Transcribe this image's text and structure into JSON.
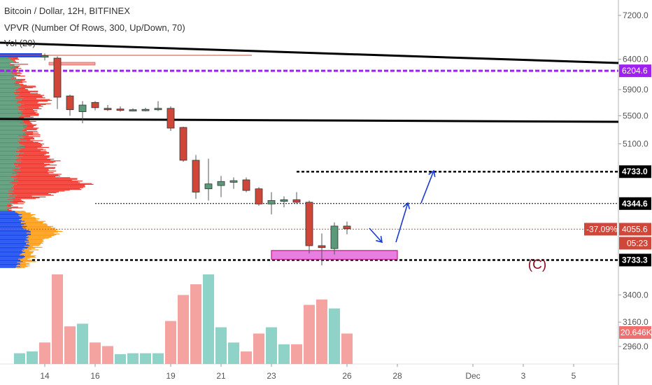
{
  "header": {
    "title": "Bitcoin / Dollar, 12H, BITFINEX",
    "indicator": "VPVR (Number Of Rows, 300, Up/Down, 70)",
    "volume": "Vol (20)"
  },
  "colors": {
    "up": "#5b9a78",
    "down": "#d0473a",
    "vol_up": "#8fd3c8",
    "vol_down": "#f4a3a0",
    "vpvr_up_top": "#5b9a78",
    "vpvr_down_top": "#f03c32",
    "vpvr_up_bottom": "#1f4ef0",
    "vpvr_down_bottom": "#ff9f1a",
    "purple": "#a020f0",
    "arrow": "#1a3ad4",
    "box_fill": "#e77fe0",
    "box_stroke": "#c01a8a",
    "c_label": "#8b0a1a"
  },
  "chart_data": {
    "type": "candlestick",
    "title": "Bitcoin / Dollar, 12H, BITFINEX",
    "y_axis": {
      "ticks": [
        "7200.0",
        "6400.0",
        "5900.0",
        "5500.0",
        "5100.0",
        "3400.0",
        "3160.0",
        "2960.0"
      ],
      "scale": "log",
      "ylim": [
        2850,
        7700
      ]
    },
    "x_axis": {
      "ticks": [
        "14",
        "16",
        "19",
        "21",
        "23",
        "26",
        "28",
        "Dec",
        "3",
        "5"
      ]
    },
    "candles": [
      {
        "t": "14",
        "o": 6440,
        "h": 6500,
        "l": 6380,
        "c": 6460
      },
      {
        "t": "14.5",
        "o": 6420,
        "h": 6450,
        "l": 5600,
        "c": 5780
      },
      {
        "t": "15",
        "o": 5800,
        "h": 5820,
        "l": 5500,
        "c": 5590
      },
      {
        "t": "15.5",
        "o": 5560,
        "h": 5720,
        "l": 5390,
        "c": 5660
      },
      {
        "t": "16",
        "o": 5700,
        "h": 5720,
        "l": 5580,
        "c": 5620
      },
      {
        "t": "16.5",
        "o": 5610,
        "h": 5660,
        "l": 5570,
        "c": 5600
      },
      {
        "t": "17",
        "o": 5600,
        "h": 5640,
        "l": 5560,
        "c": 5580
      },
      {
        "t": "17.5",
        "o": 5585,
        "h": 5610,
        "l": 5565,
        "c": 5590
      },
      {
        "t": "18",
        "o": 5590,
        "h": 5620,
        "l": 5565,
        "c": 5595
      },
      {
        "t": "18.5",
        "o": 5590,
        "h": 5720,
        "l": 5570,
        "c": 5610
      },
      {
        "t": "19",
        "o": 5610,
        "h": 5640,
        "l": 5280,
        "c": 5320
      },
      {
        "t": "19.5",
        "o": 5330,
        "h": 5340,
        "l": 4860,
        "c": 4880
      },
      {
        "t": "20",
        "o": 4880,
        "h": 4950,
        "l": 4400,
        "c": 4480
      },
      {
        "t": "20.5",
        "o": 4520,
        "h": 4900,
        "l": 4380,
        "c": 4580
      },
      {
        "t": "21",
        "o": 4560,
        "h": 4680,
        "l": 4420,
        "c": 4610
      },
      {
        "t": "21.5",
        "o": 4600,
        "h": 4660,
        "l": 4520,
        "c": 4620
      },
      {
        "t": "22",
        "o": 4630,
        "h": 4660,
        "l": 4480,
        "c": 4500
      },
      {
        "t": "22.5",
        "o": 4520,
        "h": 4540,
        "l": 4320,
        "c": 4340
      },
      {
        "t": "23",
        "o": 4340,
        "h": 4480,
        "l": 4220,
        "c": 4380
      },
      {
        "t": "23.5",
        "o": 4370,
        "h": 4430,
        "l": 4300,
        "c": 4390
      },
      {
        "t": "24",
        "o": 4390,
        "h": 4480,
        "l": 4340,
        "c": 4360
      },
      {
        "t": "24.5",
        "o": 4360,
        "h": 4380,
        "l": 3800,
        "c": 3880
      },
      {
        "t": "25",
        "o": 3880,
        "h": 4010,
        "l": 3680,
        "c": 3860
      },
      {
        "t": "25.5",
        "o": 3850,
        "h": 4130,
        "l": 3790,
        "c": 4090
      },
      {
        "t": "26",
        "o": 4090,
        "h": 4140,
        "l": 4000,
        "c": 4060
      }
    ],
    "volume": [
      {
        "t": "13",
        "up": true,
        "v": 0.12
      },
      {
        "t": "13.5",
        "up": true,
        "v": 0.14
      },
      {
        "t": "14",
        "up": false,
        "v": 0.24
      },
      {
        "t": "14.5",
        "up": false,
        "v": 1.0
      },
      {
        "t": "15",
        "up": false,
        "v": 0.42
      },
      {
        "t": "15.5",
        "up": true,
        "v": 0.45
      },
      {
        "t": "16",
        "up": false,
        "v": 0.24
      },
      {
        "t": "16.5",
        "up": false,
        "v": 0.2
      },
      {
        "t": "17",
        "up": true,
        "v": 0.11
      },
      {
        "t": "17.5",
        "up": true,
        "v": 0.12
      },
      {
        "t": "18",
        "up": true,
        "v": 0.12
      },
      {
        "t": "18.5",
        "up": true,
        "v": 0.12
      },
      {
        "t": "19",
        "up": false,
        "v": 0.48
      },
      {
        "t": "19.5",
        "up": false,
        "v": 0.77
      },
      {
        "t": "20",
        "up": false,
        "v": 0.89
      },
      {
        "t": "20.5",
        "up": true,
        "v": 1.0
      },
      {
        "t": "21",
        "up": true,
        "v": 0.41
      },
      {
        "t": "21.5",
        "up": true,
        "v": 0.24
      },
      {
        "t": "22",
        "up": false,
        "v": 0.14
      },
      {
        "t": "22.5",
        "up": false,
        "v": 0.34
      },
      {
        "t": "23",
        "up": true,
        "v": 0.41
      },
      {
        "t": "23.5",
        "up": true,
        "v": 0.22
      },
      {
        "t": "24",
        "up": false,
        "v": 0.22
      },
      {
        "t": "24.5",
        "up": false,
        "v": 0.66
      },
      {
        "t": "25",
        "up": false,
        "v": 0.72
      },
      {
        "t": "25.5",
        "up": true,
        "v": 0.62
      },
      {
        "t": "26",
        "up": false,
        "v": 0.34
      }
    ],
    "levels": [
      {
        "price": 6204.6,
        "label": "6204.6",
        "color": "#a020f0",
        "style": "dashed-thick"
      },
      {
        "price": 4733.0,
        "label": "4733.0",
        "color": "#000000",
        "style": "dotted",
        "from": "24"
      },
      {
        "price": 4344.6,
        "label": "4344.6",
        "color": "#000000",
        "style": "dotted-thin",
        "from": "16"
      },
      {
        "price": 3733.3,
        "label": "3733.3",
        "color": "#000000",
        "style": "dotted",
        "from": "13.5"
      }
    ],
    "trendlines": [
      {
        "from": {
          "t": "12",
          "p": 6700
        },
        "to": {
          "t": "6",
          "p": 6300
        }
      },
      {
        "from": {
          "t": "12",
          "p": 5470
        },
        "to": {
          "t": "6",
          "p": 5420
        }
      }
    ],
    "current": {
      "price": 4055.6,
      "label": "4055.6",
      "change": "-37.09%",
      "countdown": "05:23"
    },
    "volume_label": "20.646K",
    "annotation": "(C)",
    "zone": {
      "from": "23",
      "to": "28",
      "price_low": 3740,
      "price_high": 3830
    }
  }
}
